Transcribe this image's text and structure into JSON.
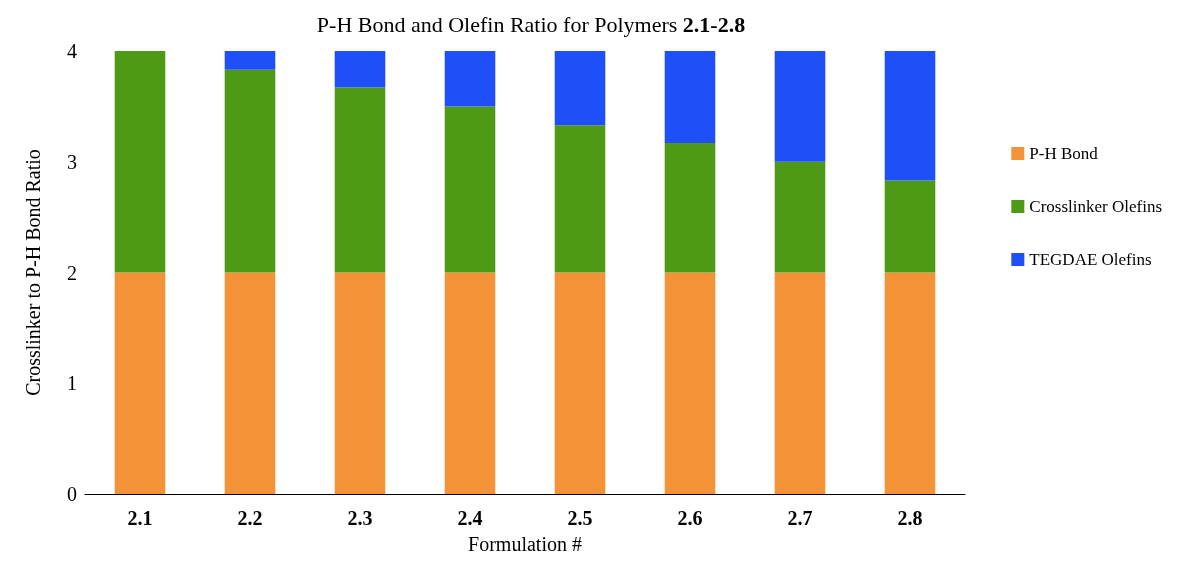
{
  "chart_data": {
    "type": "bar",
    "title": "P-H Bond and Olefin Ratio for Polymers 2.1-2.8",
    "xlabel": "Formulation #",
    "ylabel": "Crosslinker to P-H Bond Ratio",
    "categories": [
      "2.1",
      "2.2",
      "2.3",
      "2.4",
      "2.5",
      "2.6",
      "2.7",
      "2.8"
    ],
    "series": [
      {
        "name": "P-H Bond",
        "color": "#f39237",
        "values": [
          2,
          2,
          2,
          2,
          2,
          2,
          2,
          2
        ]
      },
      {
        "name": "Crosslinker Olefins",
        "color": "#4e9a17",
        "values": [
          2,
          1.83,
          1.67,
          1.5,
          1.33,
          1.17,
          1,
          0.83
        ]
      },
      {
        "name": "TEGDAE Olefins",
        "color": "#1f4ff6",
        "values": [
          0,
          0.17,
          0.33,
          0.5,
          0.67,
          0.83,
          1,
          1.17
        ]
      }
    ],
    "stacked": true,
    "ylim": [
      0,
      4
    ],
    "yticks": [
      0,
      1,
      2,
      3,
      4
    ],
    "grid": false,
    "legend": "right"
  }
}
